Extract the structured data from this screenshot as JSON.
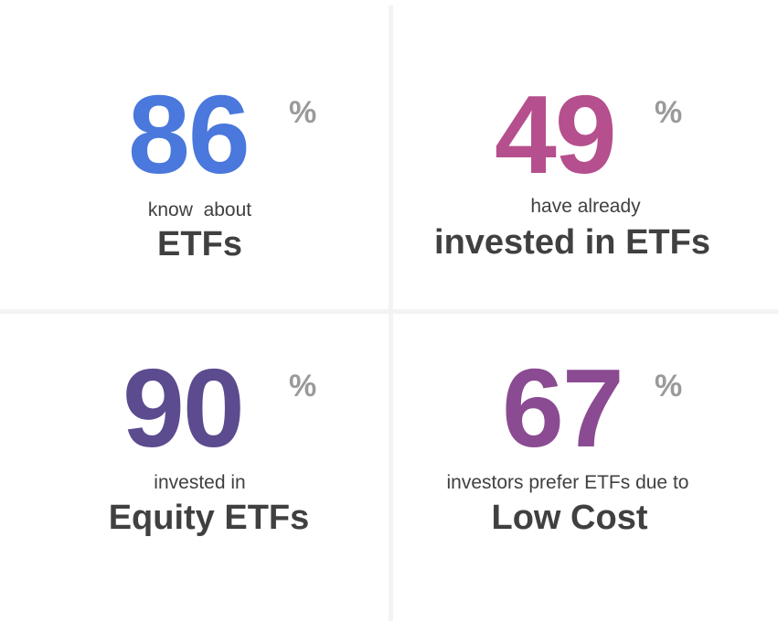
{
  "stats": [
    {
      "value": "86",
      "unit": "%",
      "caption": "know  about",
      "headline": "ETFs",
      "color": "#4a78dc"
    },
    {
      "value": "49",
      "unit": "%",
      "caption": "have already",
      "headline": "invested in ETFs",
      "color": "#b64f8d"
    },
    {
      "value": "90",
      "unit": "%",
      "caption": "invested in",
      "headline": "Equity ETFs",
      "color": "#5c4b8e"
    },
    {
      "value": "67",
      "unit": "%",
      "caption": "investors prefer ETFs due to",
      "headline": "Low Cost",
      "color": "#8b4b92"
    }
  ],
  "colors": {
    "text": "#404040",
    "percent_sign": "#9a9a9a",
    "divider": "#f3f3f3",
    "background": "#ffffff"
  }
}
